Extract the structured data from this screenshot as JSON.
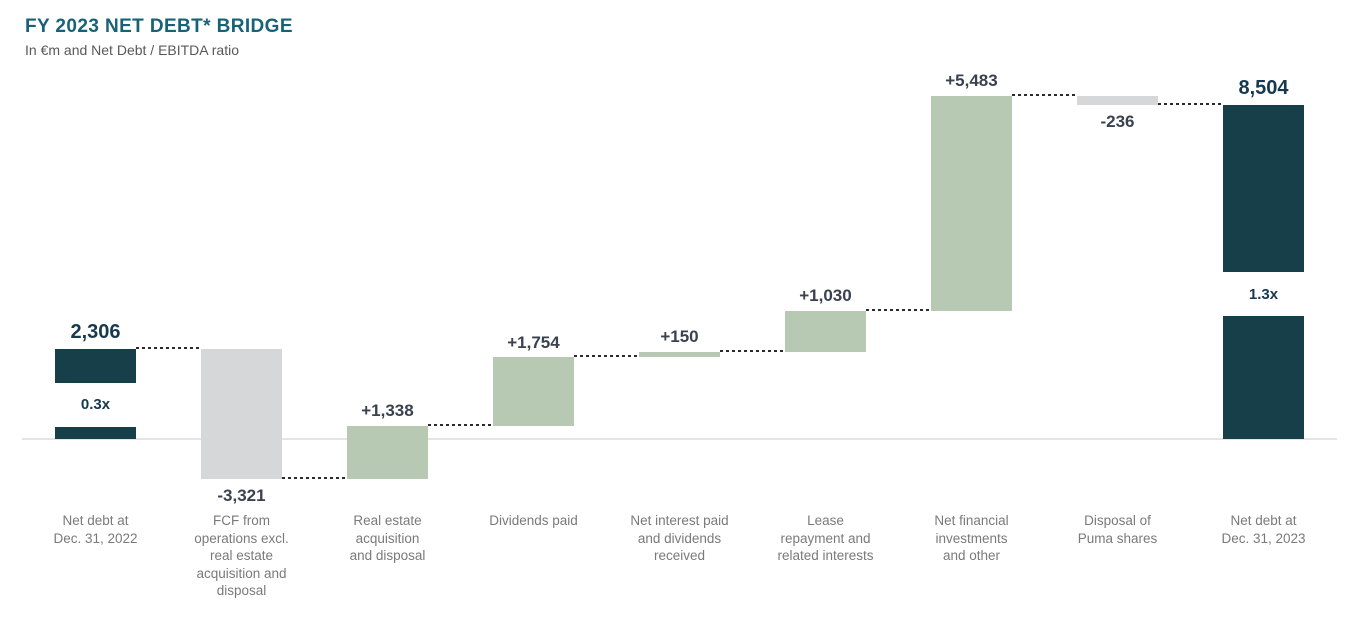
{
  "header": {
    "title": "FY 2023 NET DEBT* BRIDGE",
    "subtitle": "In €m and Net Debt / EBITDA ratio"
  },
  "chart_data": {
    "type": "waterfall",
    "title": "FY 2023 NET DEBT* BRIDGE",
    "subtitle": "In €m and Net Debt / EBITDA ratio",
    "unit": "EUR millions",
    "grid": false,
    "legend": false,
    "value_range": [
      -1015,
      8740
    ],
    "bars": [
      {
        "category": "Net debt at\nDec. 31, 2022",
        "value": 2306,
        "display": "2,306",
        "cumulative_start": 0,
        "cumulative_end": 2306,
        "role": "total",
        "ratio": "0.3x"
      },
      {
        "category": "FCF from\noperations excl.\nreal estate\nacquisition and\ndisposal",
        "value": -3321,
        "display": "-3,321",
        "cumulative_start": 2306,
        "cumulative_end": -1015,
        "role": "decrease"
      },
      {
        "category": "Real estate\nacquisition\nand disposal",
        "value": 1338,
        "display": "+1,338",
        "cumulative_start": -1015,
        "cumulative_end": 323,
        "role": "increase"
      },
      {
        "category": "Dividends paid",
        "value": 1754,
        "display": "+1,754",
        "cumulative_start": 323,
        "cumulative_end": 2077,
        "role": "increase"
      },
      {
        "category": "Net interest paid\nand dividends\nreceived",
        "value": 150,
        "display": "+150",
        "cumulative_start": 2077,
        "cumulative_end": 2227,
        "role": "increase"
      },
      {
        "category": "Lease\nrepayment and\nrelated interests",
        "value": 1030,
        "display": "+1,030",
        "cumulative_start": 2227,
        "cumulative_end": 3257,
        "role": "increase"
      },
      {
        "category": "Net financial\ninvestments\nand other",
        "value": 5483,
        "display": "+5,483",
        "cumulative_start": 3257,
        "cumulative_end": 8740,
        "role": "increase"
      },
      {
        "category": "Disposal of\nPuma shares",
        "value": -236,
        "display": "-236",
        "cumulative_start": 8740,
        "cumulative_end": 8504,
        "role": "decrease"
      },
      {
        "category": "Net debt at\nDec. 31, 2023",
        "value": 8504,
        "display": "8,504",
        "cumulative_start": 0,
        "cumulative_end": 8504,
        "role": "total",
        "ratio": "1.3x"
      }
    ],
    "ratios": {
      "start": "0.3x",
      "end": "1.3x"
    },
    "colors": {
      "total_bar": "#173f49",
      "increase_bar": "#b7c9b3",
      "decrease_bar": "#d6d7d8",
      "connector": "#2b2b2b",
      "baseline": "#e4e4e4",
      "title": "#166277",
      "subtitle": "#595959",
      "delta_label": "#3a4250",
      "total_label": "#16394e",
      "ratio_label": "#16394e",
      "category_label": "#7a7a7a"
    }
  }
}
